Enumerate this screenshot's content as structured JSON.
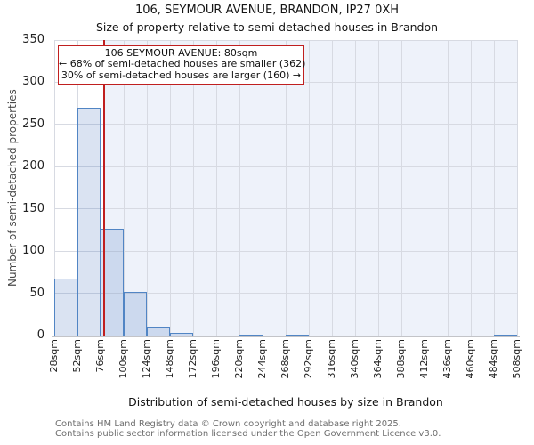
{
  "title": "106, SEYMOUR AVENUE, BRANDON, IP27 0XH",
  "subtitle": "Size of property relative to semi-detached houses in Brandon",
  "annotation": {
    "line1": "106 SEYMOUR AVENUE: 80sqm",
    "line2": "← 68% of semi-detached houses are smaller (362)",
    "line3": "30% of semi-detached houses are larger (160) →"
  },
  "footer": {
    "line1": "Contains HM Land Registry data © Crown copyright and database right 2025.",
    "line2": "Contains public sector information licensed under the Open Government Licence v3.0."
  },
  "chart_data": {
    "type": "bar",
    "title": "106, SEYMOUR AVENUE, BRANDON, IP27 0XH",
    "subtitle": "Size of property relative to semi-detached houses in Brandon",
    "xlabel": "Distribution of semi-detached houses by size in Brandon",
    "ylabel": "Number of semi-detached properties",
    "x_tick_labels": [
      "28sqm",
      "52sqm",
      "76sqm",
      "100sqm",
      "124sqm",
      "148sqm",
      "172sqm",
      "196sqm",
      "220sqm",
      "244sqm",
      "268sqm",
      "292sqm",
      "316sqm",
      "340sqm",
      "364sqm",
      "388sqm",
      "412sqm",
      "436sqm",
      "460sqm",
      "484sqm",
      "508sqm"
    ],
    "bin_start": 28,
    "bin_width": 24,
    "values": [
      67,
      270,
      127,
      52,
      11,
      3,
      0,
      0,
      1,
      0,
      1,
      0,
      0,
      0,
      0,
      0,
      0,
      0,
      0,
      1
    ],
    "y_ticks": [
      0,
      50,
      100,
      150,
      200,
      250,
      300,
      350
    ],
    "ylim": [
      0,
      350
    ],
    "xlim": [
      28,
      508
    ],
    "marker_value": 80,
    "grid": true,
    "legend": "none",
    "colors": {
      "marker_line": "#c01f1f",
      "annotation_border": "#c01f1f",
      "bar_border": "#5185c4",
      "bar_fill": "rgba(86,129,198,0.22)",
      "larger_region_bg": "#eef2fa",
      "gridline": "#d7dae2",
      "axis_line": "#c3c4c8"
    }
  }
}
